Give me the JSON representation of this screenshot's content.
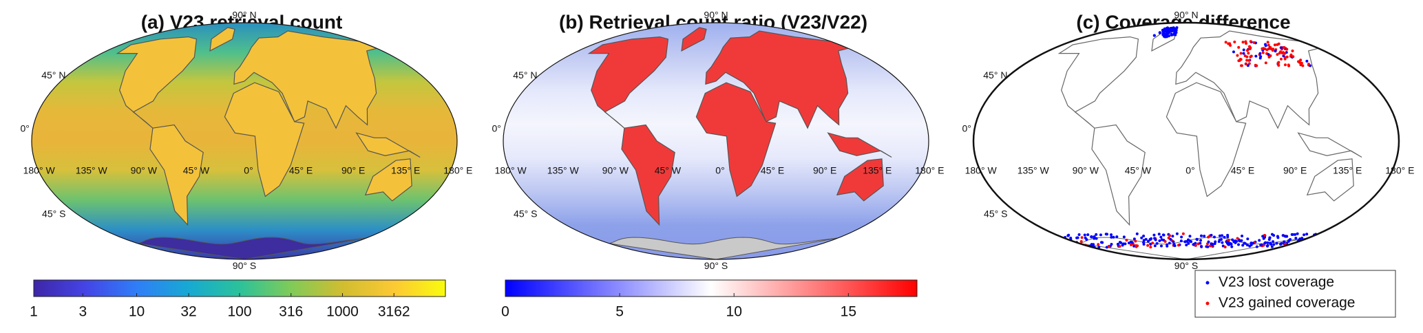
{
  "graticule": {
    "lat_labels": [
      "90° N",
      "45° N",
      "0°",
      "45° S",
      "90° S"
    ],
    "lon_labels": [
      "180° W",
      "135° W",
      "90° W",
      "45° W",
      "0°",
      "45° E",
      "90° E",
      "135° E",
      "180° E"
    ]
  },
  "panels": [
    {
      "title": "(a) V23 retrieval count",
      "colorbar": {
        "scale": "log",
        "lim": [
          1,
          10000
        ],
        "ticks": [
          1,
          3,
          10,
          32,
          100,
          316,
          1000,
          3162
        ],
        "colormap": [
          "#3e26a8",
          "#4444e6",
          "#2f7ef8",
          "#17a9d3",
          "#2bc29a",
          "#80cb58",
          "#d1bd30",
          "#fcc934",
          "#f9fb0e"
        ]
      }
    },
    {
      "title": "(b) Retrieval count ratio (V23/V22)",
      "colorbar": {
        "scale": "linear",
        "lim": [
          0,
          18
        ],
        "ticks": [
          0,
          5,
          10,
          15
        ],
        "colormap": [
          "#0000ff",
          "#ffffff",
          "#ff0000"
        ]
      }
    },
    {
      "title": "(c) Coverage difference",
      "legend": {
        "position": "lower right",
        "entries": [
          {
            "name": "V23 lost coverage",
            "color": "#0000ff"
          },
          {
            "name": "V23 gained coverage",
            "color": "#ff0000"
          }
        ]
      }
    }
  ]
}
